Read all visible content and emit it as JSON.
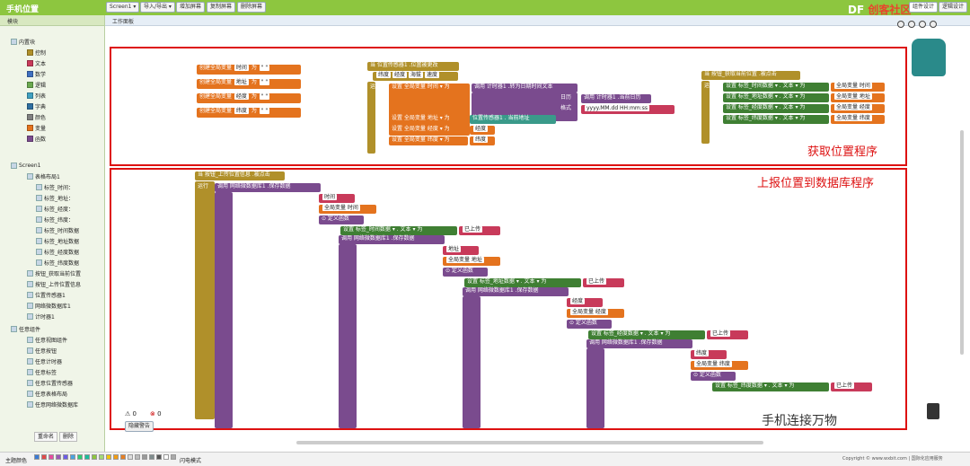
{
  "app_title": "手机位置",
  "toolbar": {
    "screen": "Screen1 ▾",
    "import": "导入/导出 ▾",
    "add_screen": "增加屏幕",
    "copy_screen": "复制屏幕",
    "delete_screen": "删除屏幕",
    "designer": "组件设计",
    "blocks": "逻辑设计"
  },
  "brand": {
    "prefix": "DF",
    "name": "创客社区"
  },
  "left_panel": {
    "header": "模块",
    "builtin": "内置块",
    "builtin_items": [
      {
        "label": "控制",
        "color": "#b0902a"
      },
      {
        "label": "文本",
        "color": "#c83a5a"
      },
      {
        "label": "数学",
        "color": "#3f6fc0"
      },
      {
        "label": "逻辑",
        "color": "#6aa84f"
      },
      {
        "label": "列表",
        "color": "#40a0c0"
      },
      {
        "label": "字典",
        "color": "#2f6fa0"
      },
      {
        "label": "颜色",
        "color": "#808080"
      },
      {
        "label": "变量",
        "color": "#e4731e"
      },
      {
        "label": "函数",
        "color": "#7a4b8e"
      }
    ],
    "screen": "Screen1",
    "tree_items": [
      "表格布局1",
      "标签_时间：",
      "标签_地址：",
      "标签_经度：",
      "标签_纬度：",
      "标签_时间数据",
      "标签_地址数据",
      "标签_经度数据",
      "标签_纬度数据",
      "按钮_获取当前位置",
      "按钮_上传位置信息",
      "位置传感器1",
      "网络微数据库1",
      "计时器1"
    ],
    "any": "任意组件",
    "any_items": [
      "任意视图组件",
      "任意按钮",
      "任意计时器",
      "任意标签",
      "任意位置传感器",
      "任意表格布局",
      "任意网络微数据库"
    ],
    "rename": "重命名",
    "delete": "删除"
  },
  "workspace": {
    "header": "工作面板",
    "label_top": "获取位置程序",
    "label_bottom": "上报位置到数据库程序",
    "warn_count": "0",
    "error_count": "0",
    "hide_warnings": "隐藏警告"
  },
  "blocks": {
    "globals": [
      {
        "label": "创建全局变量",
        "name": "时间",
        "as": "为"
      },
      {
        "label": "创建全局变量",
        "name": "地址",
        "as": "为"
      },
      {
        "label": "创建全局变量",
        "name": "经度",
        "as": "为"
      },
      {
        "label": "创建全局变量",
        "name": "纬度",
        "as": "为"
      }
    ],
    "loc_event": "当 位置传感器1 .位置被更改",
    "loc_params": [
      "纬度",
      "经度",
      "海拔",
      "速度"
    ],
    "run": "运行",
    "set_time": "设置 全局变量 时间 ▾ 为",
    "call_clock": "调用 计时器1 .转为日期时间文本",
    "date": "日历",
    "call_now": "调用 计时器1 .当前日历",
    "format": "格式",
    "format_value": "yyyy.MM.dd HH:mm:ss",
    "set_addr": "设置 全局变量 地址 ▾ 为",
    "loc_addr": "位置传感器1 . 当前地址",
    "set_lng": "设置 全局变量 经度 ▾ 为",
    "lng": "经度",
    "set_lat": "设置 全局变量 纬度 ▾ 为",
    "lat": "纬度",
    "btn_get": "当 按钮_获取当前位置 .被点击",
    "sets": [
      {
        "a": "设置 标签_时间数据 ▾ . 文本 ▾ 为",
        "b": "全局变量 时间"
      },
      {
        "a": "设置 标签_地址数据 ▾ . 文本 ▾ 为",
        "b": "全局变量 地址"
      },
      {
        "a": "设置 标签_经度数据 ▾ . 文本 ▾ 为",
        "b": "全局变量 经度"
      },
      {
        "a": "设置 标签_纬度数据 ▾ . 文本 ▾ 为",
        "b": "全局变量 纬度"
      }
    ],
    "btn_upload": "当 按钮_上传位置信息 .被点击",
    "call_db": "调用 网络微数据库1 .保存数据",
    "tag": "标签",
    "value": "数据",
    "callback": "回调",
    "define_fn": "定义函数",
    "up": [
      {
        "tag": "时间",
        "var": "全局变量 时间",
        "set": "设置 标签_时间数据 ▾ . 文本 ▾ 为",
        "done": "已上传"
      },
      {
        "tag": "地址",
        "var": "全局变量 地址",
        "set": "设置 标签_地址数据 ▾ . 文本 ▾ 为",
        "done": "已上传"
      },
      {
        "tag": "经度",
        "var": "全局变量 经度",
        "set": "设置 标签_经度数据 ▾ . 文本 ▾ 为",
        "done": "已上传"
      },
      {
        "tag": "纬度",
        "var": "全局变量 纬度",
        "set": "设置 标签_纬度数据 ▾ . 文本 ▾ 为",
        "done": "已上传"
      }
    ]
  },
  "bottom": {
    "theme": "主题颜色",
    "fast_mode": "闪电模式",
    "copyright": "Copyright © www.wxbit.com | 国际化应用服务"
  },
  "watermark": "手机连接万物"
}
